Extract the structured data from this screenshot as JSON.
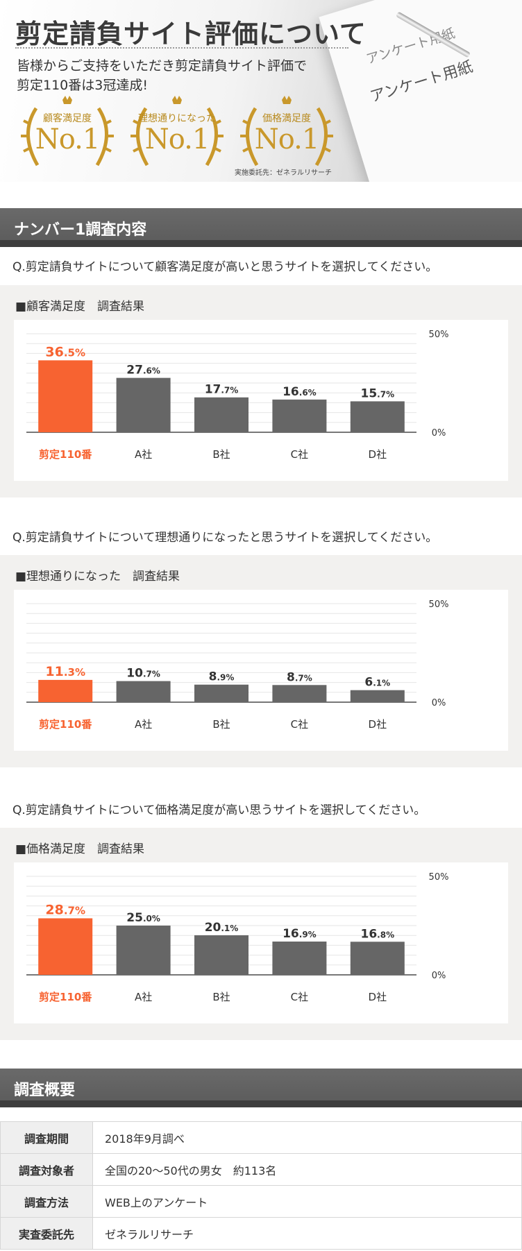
{
  "hero": {
    "title": "剪定請負サイト評価について",
    "subtitle_line1": "皆様からご支持をいただき剪定請負サイト評価で",
    "subtitle_line2": "剪定110番は3冠達成!",
    "paper_text_small": "アンケート用紙",
    "paper_text_large": "アンケート用紙",
    "badges": [
      {
        "label": "顧客満足度",
        "rank": "No.1"
      },
      {
        "label": "理想通りになった",
        "rank": "No.1"
      },
      {
        "label": "価格満足度",
        "rank": "No.1"
      }
    ],
    "note": "実施委託先：ゼネラルリサーチ"
  },
  "sections": {
    "survey_contents": "ナンバー1調査内容",
    "survey_summary": "調査概要"
  },
  "colors": {
    "highlight": "#f76331",
    "bar": "#666666",
    "gold": "#c9982b"
  },
  "charts": [
    {
      "question": "Q.剪定請負サイトについて顧客満足度が高いと思うサイトを選択してください。",
      "title": "■顧客満足度　調査結果"
    },
    {
      "question": "Q.剪定請負サイトについて理想通りになったと思うサイトを選択してください。",
      "title": "■理想通りになった　調査結果"
    },
    {
      "question": "Q.剪定請負サイトについて価格満足度が高い思うサイトを選択してください。",
      "title": "■価格満足度　調査結果"
    }
  ],
  "chart_data": [
    {
      "type": "bar",
      "title": "■顧客満足度　調査結果",
      "categories": [
        "剪定110番",
        "A社",
        "B社",
        "C社",
        "D社"
      ],
      "values": [
        36.5,
        27.6,
        17.7,
        16.6,
        15.7
      ],
      "value_labels": [
        {
          "int": "36",
          "dec": ".5%"
        },
        {
          "int": "27",
          "dec": ".6%"
        },
        {
          "int": "17",
          "dec": ".7%"
        },
        {
          "int": "16",
          "dec": ".6%"
        },
        {
          "int": "15",
          "dec": ".7%"
        }
      ],
      "highlight_index": 0,
      "ylim": [
        0,
        50
      ],
      "ytick_labels": [
        "50%",
        "0%"
      ],
      "grid": true
    },
    {
      "type": "bar",
      "title": "■理想通りになった　調査結果",
      "categories": [
        "剪定110番",
        "A社",
        "B社",
        "C社",
        "D社"
      ],
      "values": [
        11.3,
        10.7,
        8.9,
        8.7,
        6.1
      ],
      "value_labels": [
        {
          "int": "11",
          "dec": ".3%"
        },
        {
          "int": "10",
          "dec": ".7%"
        },
        {
          "int": "8",
          "dec": ".9%"
        },
        {
          "int": "8",
          "dec": ".7%"
        },
        {
          "int": "6",
          "dec": ".1%"
        }
      ],
      "highlight_index": 0,
      "ylim": [
        0,
        50
      ],
      "ytick_labels": [
        "50%",
        "0%"
      ],
      "grid": true
    },
    {
      "type": "bar",
      "title": "■価格満足度　調査結果",
      "categories": [
        "剪定110番",
        "A社",
        "B社",
        "C社",
        "D社"
      ],
      "values": [
        28.7,
        25.0,
        20.1,
        16.9,
        16.8
      ],
      "value_labels": [
        {
          "int": "28",
          "dec": ".7%"
        },
        {
          "int": "25",
          "dec": ".0%"
        },
        {
          "int": "20",
          "dec": ".1%"
        },
        {
          "int": "16",
          "dec": ".9%"
        },
        {
          "int": "16",
          "dec": ".8%"
        }
      ],
      "highlight_index": 0,
      "ylim": [
        0,
        50
      ],
      "ytick_labels": [
        "50%",
        "0%"
      ],
      "grid": true
    }
  ],
  "summary": [
    {
      "label": "調査期間",
      "value": "2018年9月調べ"
    },
    {
      "label": "調査対象者",
      "value": "全国の20～50代の男女　約113名"
    },
    {
      "label": "調査方法",
      "value": "WEB上のアンケート"
    },
    {
      "label": "実査委託先",
      "value": "ゼネラルリサーチ"
    }
  ]
}
